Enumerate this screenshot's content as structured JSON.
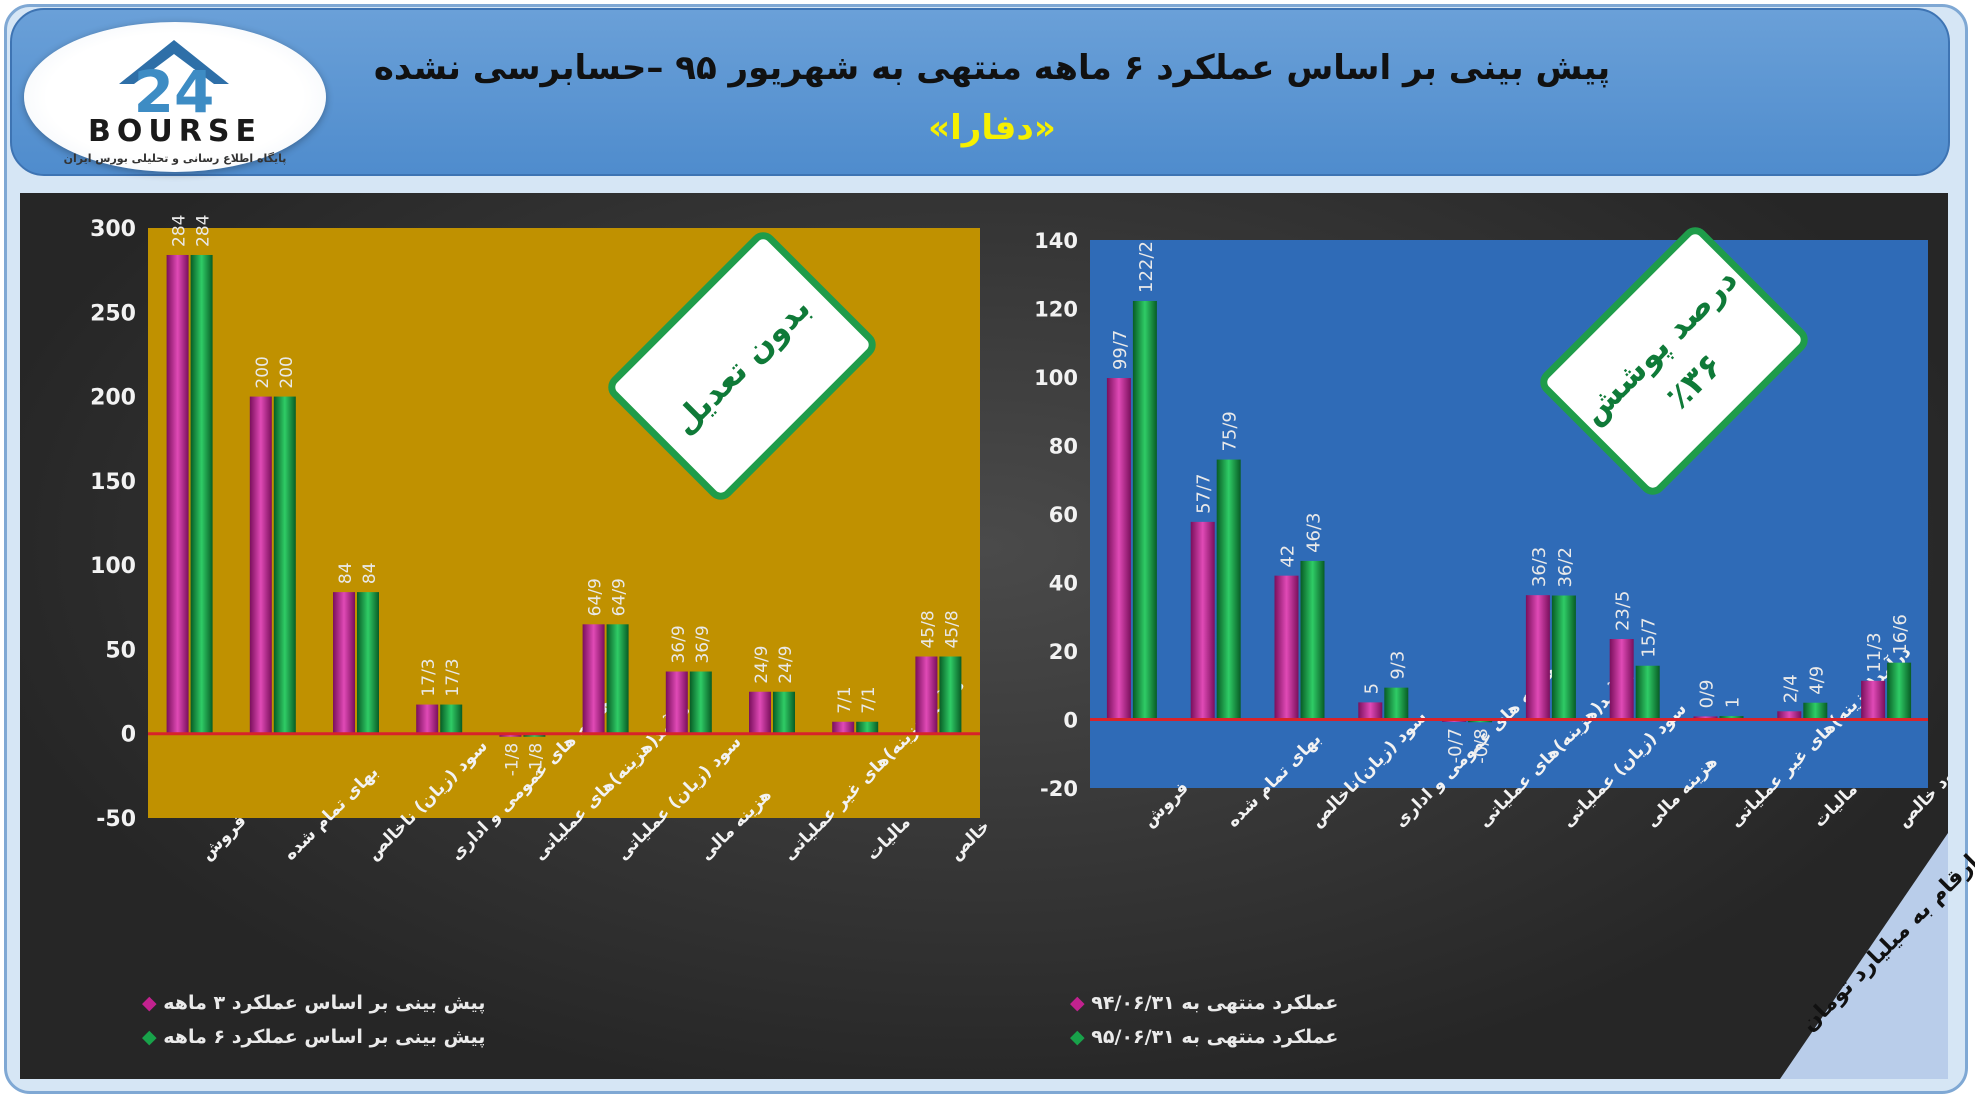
{
  "header": {
    "title": "پیش بینی بر اساس عملکرد ۶ ماهه منتهی به شهریور ۹۵ –حسابرسی نشده",
    "subtitle": "«دفارا»"
  },
  "logo": {
    "wordmark": "BOURSE",
    "number": "24",
    "tagline": "پایگاه اطلاع رسانی و تحلیلی بورس ایران"
  },
  "units_note": "ارقام به میلیارد تومان",
  "colors": {
    "magenta": "#b8198a",
    "green": "#0f8a3a",
    "gold": "#c09100",
    "blue": "#2f6bb7",
    "zero_line": "#d8232a"
  },
  "chart_data": [
    {
      "type": "bar",
      "badge": "بدون تعدیل",
      "categories": [
        "فروش",
        "بهای تمام شده",
        "سود (زیان) ناخالص",
        "هزینه های عمومی و اداری",
        "درآمد(هزینه)های عملیاتی",
        "سود (زیان) عملیاتی",
        "هزینه مالی",
        "درآمد(هزینه)های غیر عملیاتی",
        "مالیات",
        "سود خالص"
      ],
      "series": [
        {
          "name": "پیش بینی بر اساس عملکرد ۳ ماهه",
          "values": [
            284,
            200,
            84,
            17.3,
            -1.8,
            64.9,
            36.9,
            24.9,
            7.1,
            45.8
          ],
          "labels": [
            "284",
            "200",
            "84",
            "17/3",
            "-1/8",
            "64/9",
            "36/9",
            "24/9",
            "7/1",
            "45/8"
          ]
        },
        {
          "name": "پیش بینی بر اساس عملکرد ۶ ماهه",
          "values": [
            284,
            200,
            84,
            17.3,
            -1.8,
            64.9,
            36.9,
            24.9,
            7.1,
            45.8
          ],
          "labels": [
            "284",
            "200",
            "84",
            "17/3",
            "-1/8",
            "64/9",
            "36/9",
            "24/9",
            "7/1",
            "45/8"
          ]
        }
      ],
      "ylim": [
        -50,
        300
      ],
      "yticks": [
        300,
        250,
        200,
        150,
        100,
        50,
        0,
        -50
      ],
      "legend_position": "bottom-left"
    },
    {
      "type": "bar",
      "badge": "درصد پوشش",
      "badge_value": "٪۳۶",
      "categories": [
        "فروش",
        "بهای تمام شده",
        "سود (زیان)ناخالص",
        "هزینه های عمومی و اداری",
        "درآمد(هزینه)های عملیاتی",
        "سود (زیان) عملیاتی",
        "هزینه مالی",
        "درآمد(هزینه)های غیر عملیاتی",
        "مالیات",
        "سود خالص"
      ],
      "series": [
        {
          "name": "عملکرد منتهی به ۹۴/۰۶/۳۱",
          "values": [
            99.7,
            57.7,
            42,
            5,
            -0.7,
            36.3,
            23.5,
            0.9,
            2.4,
            11.3
          ],
          "labels": [
            "99/7",
            "57/7",
            "42",
            "5",
            "-0/7",
            "36/3",
            "23/5",
            "0/9",
            "2/4",
            "11/3"
          ]
        },
        {
          "name": "عملکرد منتهی به ۹۵/۰۶/۳۱",
          "values": [
            122.2,
            75.9,
            46.3,
            9.3,
            -0.8,
            36.2,
            15.7,
            1,
            4.9,
            16.6
          ],
          "labels": [
            "122/2",
            "75/9",
            "46/3",
            "9/3",
            "-0/8",
            "36/2",
            "15/7",
            "1",
            "4/9",
            "16/6"
          ]
        }
      ],
      "ylim": [
        -20,
        140
      ],
      "yticks": [
        140,
        120,
        100,
        80,
        60,
        40,
        20,
        0,
        -20
      ],
      "legend_position": "bottom-left"
    }
  ]
}
